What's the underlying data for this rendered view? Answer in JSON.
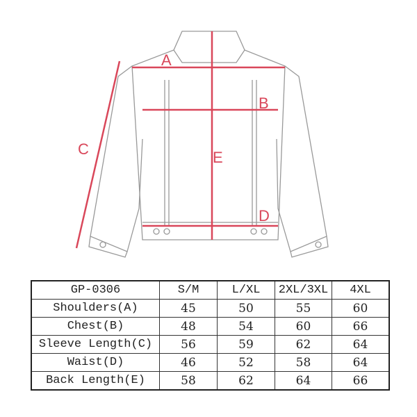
{
  "diagram": {
    "accent_color": "#d9475a",
    "labels": {
      "a": "A",
      "b": "B",
      "c": "C",
      "d": "D",
      "e": "E"
    }
  },
  "table": {
    "headers": [
      "GP-0306",
      "S/M",
      "L/XL",
      "2XL/3XL",
      "4XL"
    ],
    "rows": [
      [
        "Shoulders(A)",
        "45",
        "50",
        "55",
        "60"
      ],
      [
        "Chest(B)",
        "48",
        "54",
        "60",
        "66"
      ],
      [
        "Sleeve Length(C)",
        "56",
        "59",
        "62",
        "64"
      ],
      [
        "Waist(D)",
        "46",
        "52",
        "58",
        "64"
      ],
      [
        "Back Length(E)",
        "58",
        "62",
        "64",
        "66"
      ]
    ]
  }
}
